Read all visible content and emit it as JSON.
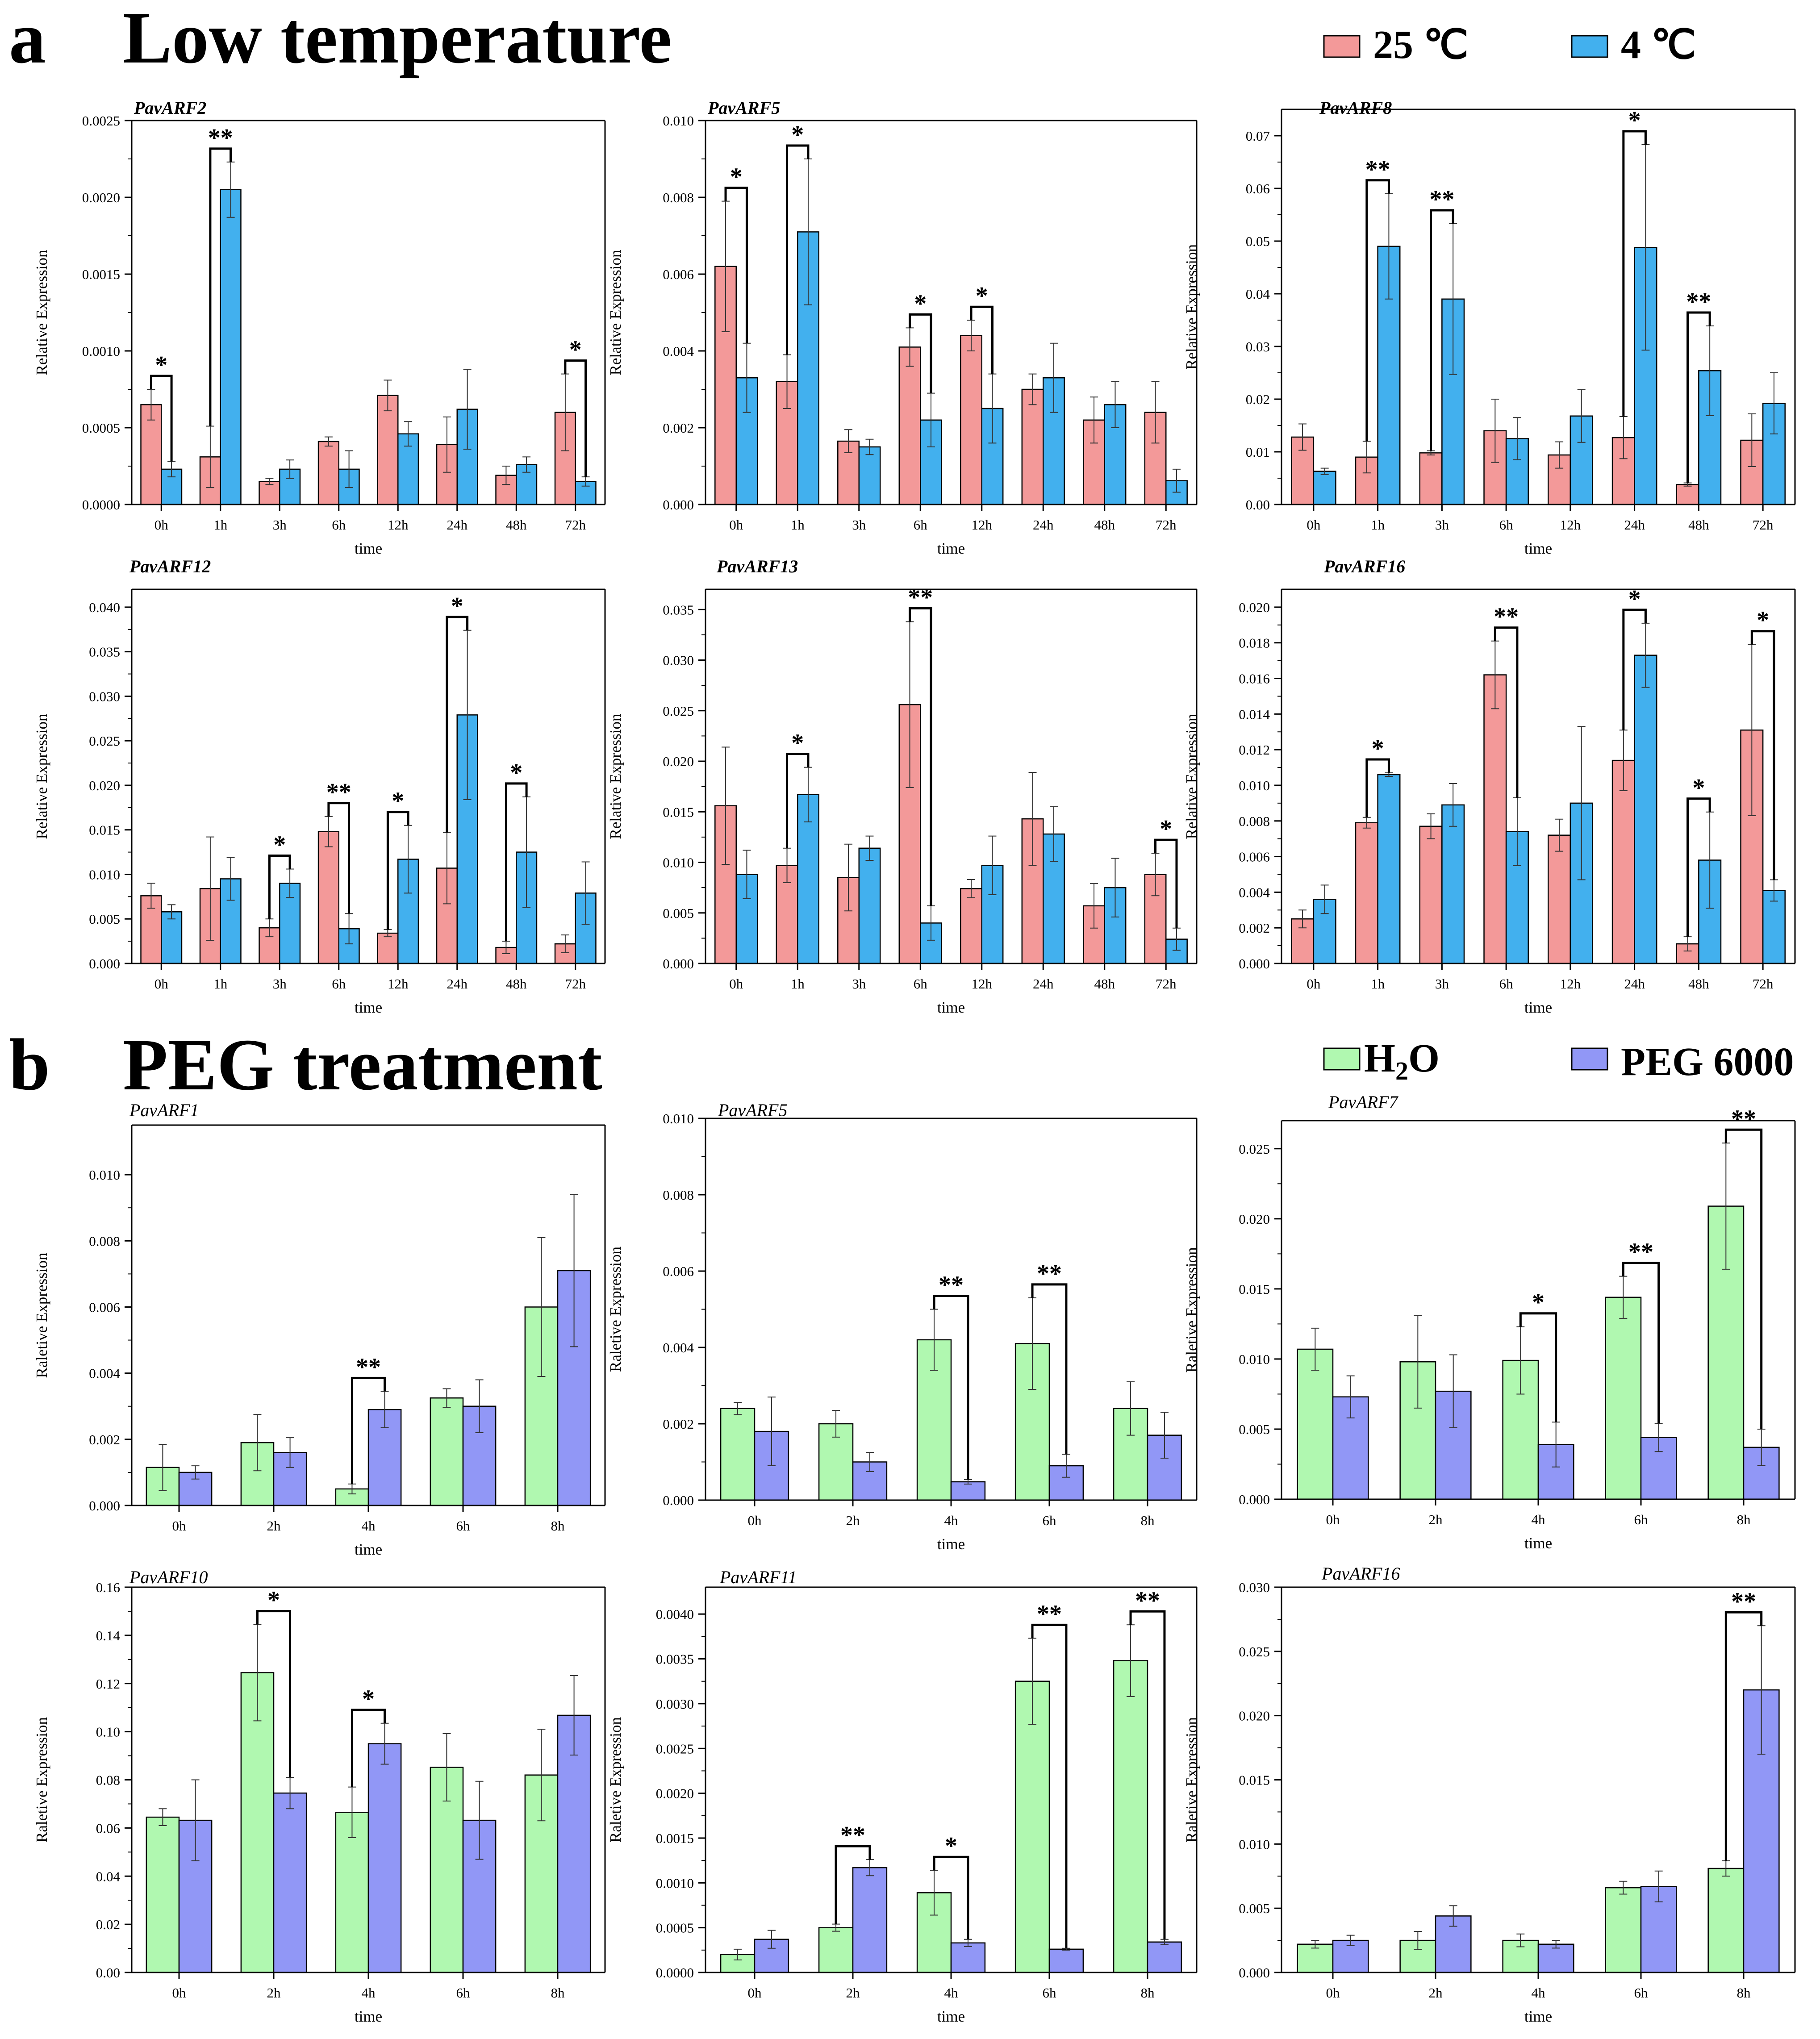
{
  "sections": [
    {
      "letter": "a",
      "title": "Low temperature",
      "legend": [
        {
          "label": "25 ℃",
          "color": "#F39999"
        },
        {
          "label": "4 ℃",
          "color": "#42B0EE"
        }
      ]
    },
    {
      "letter": "b",
      "title": "PEG treatment",
      "legend": [
        {
          "label": "H",
          "sub": "2",
          "label_after": "O",
          "color": "#B0F8B0"
        },
        {
          "label": "PEG 6000",
          "color": "#9197F6"
        }
      ]
    }
  ],
  "chart_data": [
    {
      "type": "bar",
      "title": "PavARF2",
      "xlabel": "time",
      "ylabel": "Relative Expression",
      "categories": [
        "0h",
        "1h",
        "3h",
        "6h",
        "12h",
        "24h",
        "48h",
        "72h"
      ],
      "ylim": [
        0,
        0.0025
      ],
      "yticks": [
        "0.0000",
        "0.0005",
        "0.0010",
        "0.0015",
        "0.0020",
        "0.0025"
      ],
      "series": [
        {
          "name": "25 ℃",
          "values": [
            0.00065,
            0.00031,
            0.00015,
            0.00041,
            0.00071,
            0.00039,
            0.00019,
            0.0006
          ],
          "errors": [
            0.0001,
            0.0002,
            2e-05,
            3e-05,
            0.0001,
            0.00018,
            6e-05,
            0.00025
          ]
        },
        {
          "name": "4 ℃",
          "values": [
            0.00023,
            0.00205,
            0.00023,
            0.00023,
            0.00046,
            0.00062,
            0.00026,
            0.00015
          ],
          "errors": [
            5e-05,
            0.00018,
            6e-05,
            0.00012,
            8e-05,
            0.00026,
            5e-05,
            3e-05
          ]
        }
      ],
      "significance": [
        {
          "index": 0,
          "label": "*"
        },
        {
          "index": 1,
          "label": "**"
        },
        {
          "index": 7,
          "label": "*"
        }
      ]
    },
    {
      "type": "bar",
      "title": "PavARF5",
      "xlabel": "time",
      "ylabel": "Relative Expression",
      "categories": [
        "0h",
        "1h",
        "3h",
        "6h",
        "12h",
        "24h",
        "48h",
        "72h"
      ],
      "ylim": [
        0,
        0.01
      ],
      "yticks": [
        "0.000",
        "0.002",
        "0.004",
        "0.006",
        "0.008",
        "0.010"
      ],
      "series": [
        {
          "name": "25 ℃",
          "values": [
            0.0062,
            0.0032,
            0.00165,
            0.0041,
            0.0044,
            0.003,
            0.0022,
            0.0024
          ],
          "errors": [
            0.0017,
            0.0007,
            0.0003,
            0.0005,
            0.0004,
            0.0004,
            0.0006,
            0.0008
          ]
        },
        {
          "name": "4 ℃",
          "values": [
            0.0033,
            0.0071,
            0.0015,
            0.0022,
            0.0025,
            0.0033,
            0.0026,
            0.00062
          ],
          "errors": [
            0.0009,
            0.0019,
            0.0002,
            0.0007,
            0.0009,
            0.0009,
            0.0006,
            0.0003
          ]
        }
      ],
      "significance": [
        {
          "index": 0,
          "label": "*"
        },
        {
          "index": 1,
          "label": "*"
        },
        {
          "index": 3,
          "label": "*"
        },
        {
          "index": 4,
          "label": "*"
        }
      ]
    },
    {
      "type": "bar",
      "title": "PavARF8",
      "xlabel": "time",
      "ylabel": "Relative Expression",
      "categories": [
        "0h",
        "1h",
        "3h",
        "6h",
        "12h",
        "24h",
        "48h",
        "72h"
      ],
      "ylim": [
        0,
        0.075
      ],
      "yticks": [
        "0.00",
        "0.01",
        "0.02",
        "0.03",
        "0.04",
        "0.05",
        "0.06",
        "0.07"
      ],
      "series": [
        {
          "name": "25 ℃",
          "values": [
            0.0128,
            0.009,
            0.0098,
            0.014,
            0.0094,
            0.0127,
            0.0038,
            0.0122
          ],
          "errors": [
            0.0025,
            0.003,
            0.0004,
            0.006,
            0.0025,
            0.004,
            0.0003,
            0.005
          ]
        },
        {
          "name": "4 ℃",
          "values": [
            0.0063,
            0.049,
            0.039,
            0.0125,
            0.0168,
            0.0488,
            0.0254,
            0.0192
          ],
          "errors": [
            0.0006,
            0.01,
            0.0143,
            0.004,
            0.005,
            0.0195,
            0.0085,
            0.0058
          ]
        }
      ],
      "significance": [
        {
          "index": 1,
          "label": "**"
        },
        {
          "index": 2,
          "label": "**"
        },
        {
          "index": 5,
          "label": "*"
        },
        {
          "index": 6,
          "label": "**"
        }
      ]
    },
    {
      "type": "bar",
      "title": "PavARF12",
      "xlabel": "time",
      "ylabel": "Relative Expression",
      "categories": [
        "0h",
        "1h",
        "3h",
        "6h",
        "12h",
        "24h",
        "48h",
        "72h"
      ],
      "ylim": [
        0,
        0.042
      ],
      "yticks": [
        "0.000",
        "0.005",
        "0.010",
        "0.015",
        "0.020",
        "0.025",
        "0.030",
        "0.035",
        "0.040"
      ],
      "series": [
        {
          "name": "25 ℃",
          "values": [
            0.0076,
            0.0084,
            0.004,
            0.0148,
            0.0034,
            0.0107,
            0.0018,
            0.0022
          ],
          "errors": [
            0.0014,
            0.0058,
            0.001,
            0.0017,
            0.0004,
            0.004,
            0.0007,
            0.001
          ]
        },
        {
          "name": "4 ℃",
          "values": [
            0.0058,
            0.0095,
            0.009,
            0.0039,
            0.0117,
            0.0279,
            0.0125,
            0.0079
          ],
          "errors": [
            0.0008,
            0.0024,
            0.0016,
            0.0017,
            0.0038,
            0.0095,
            0.0062,
            0.0035
          ]
        }
      ],
      "significance": [
        {
          "index": 2,
          "label": "*"
        },
        {
          "index": 3,
          "label": "**"
        },
        {
          "index": 4,
          "label": "*"
        },
        {
          "index": 5,
          "label": "*"
        },
        {
          "index": 6,
          "label": "*"
        }
      ]
    },
    {
      "type": "bar",
      "title": "PavARF13",
      "xlabel": "time",
      "ylabel": "Relative Expression",
      "categories": [
        "0h",
        "1h",
        "3h",
        "6h",
        "12h",
        "24h",
        "48h",
        "72h"
      ],
      "ylim": [
        0,
        0.037
      ],
      "yticks": [
        "0.000",
        "0.005",
        "0.010",
        "0.015",
        "0.020",
        "0.025",
        "0.030",
        "0.035"
      ],
      "series": [
        {
          "name": "25 ℃",
          "values": [
            0.0156,
            0.0097,
            0.0085,
            0.0256,
            0.0074,
            0.0143,
            0.0057,
            0.0088
          ],
          "errors": [
            0.0058,
            0.0017,
            0.0033,
            0.0082,
            0.0009,
            0.0046,
            0.0022,
            0.0021
          ]
        },
        {
          "name": "4 ℃",
          "values": [
            0.0088,
            0.0167,
            0.0114,
            0.004,
            0.0097,
            0.0128,
            0.0075,
            0.0024
          ],
          "errors": [
            0.0024,
            0.0027,
            0.0012,
            0.0017,
            0.0029,
            0.0027,
            0.0029,
            0.0011
          ]
        }
      ],
      "significance": [
        {
          "index": 1,
          "label": "*"
        },
        {
          "index": 3,
          "label": "**"
        },
        {
          "index": 7,
          "label": "*"
        }
      ]
    },
    {
      "type": "bar",
      "title": "PavARF16",
      "xlabel": "time",
      "ylabel": "Relative Expression",
      "categories": [
        "0h",
        "1h",
        "3h",
        "6h",
        "12h",
        "24h",
        "48h",
        "72h"
      ],
      "ylim": [
        0,
        0.021
      ],
      "yticks": [
        "0.000",
        "0.002",
        "0.004",
        "0.006",
        "0.008",
        "0.010",
        "0.012",
        "0.014",
        "0.016",
        "0.018",
        "0.020"
      ],
      "series": [
        {
          "name": "25 ℃",
          "values": [
            0.0025,
            0.0079,
            0.0077,
            0.0162,
            0.0072,
            0.0114,
            0.0011,
            0.0131
          ],
          "errors": [
            0.0005,
            0.0003,
            0.0007,
            0.0019,
            0.0009,
            0.0017,
            0.0004,
            0.0048
          ]
        },
        {
          "name": "4 ℃",
          "values": [
            0.0036,
            0.0106,
            0.0089,
            0.0074,
            0.009,
            0.0173,
            0.0058,
            0.0041
          ],
          "errors": [
            0.0008,
            0.0001,
            0.0012,
            0.0019,
            0.0043,
            0.0018,
            0.0027,
            0.0006
          ]
        }
      ],
      "significance": [
        {
          "index": 1,
          "label": "*"
        },
        {
          "index": 3,
          "label": "**"
        },
        {
          "index": 5,
          "label": "*"
        },
        {
          "index": 6,
          "label": "*"
        },
        {
          "index": 7,
          "label": "*"
        }
      ]
    },
    {
      "type": "bar",
      "title": "PavARF1",
      "xlabel": "time",
      "ylabel": "Raletive Expression",
      "categories": [
        "0h",
        "2h",
        "4h",
        "6h",
        "8h"
      ],
      "ylim": [
        0,
        0.0115
      ],
      "yticks": [
        "0.000",
        "0.002",
        "0.004",
        "0.006",
        "0.008",
        "0.010"
      ],
      "series": [
        {
          "name": "H2O",
          "values": [
            0.00115,
            0.0019,
            0.0005,
            0.00325,
            0.006
          ],
          "errors": [
            0.0007,
            0.00085,
            0.00015,
            0.00028,
            0.0021
          ]
        },
        {
          "name": "PEG 6000",
          "values": [
            0.001,
            0.0016,
            0.0029,
            0.003,
            0.0071
          ],
          "errors": [
            0.0002,
            0.00045,
            0.00055,
            0.0008,
            0.0023
          ]
        }
      ],
      "significance": [
        {
          "index": 2,
          "label": "**"
        }
      ]
    },
    {
      "type": "bar",
      "title": "PavARF5",
      "xlabel": "time",
      "ylabel": "Raletive Expression",
      "categories": [
        "0h",
        "2h",
        "4h",
        "6h",
        "8h"
      ],
      "ylim": [
        0,
        0.01
      ],
      "yticks": [
        "0.000",
        "0.002",
        "0.004",
        "0.006",
        "0.008",
        "0.010"
      ],
      "series": [
        {
          "name": "H2O",
          "values": [
            0.0024,
            0.002,
            0.0042,
            0.0041,
            0.0024
          ],
          "errors": [
            0.00016,
            0.00035,
            0.0008,
            0.0012,
            0.0007
          ]
        },
        {
          "name": "PEG 6000",
          "values": [
            0.0018,
            0.001,
            0.00048,
            0.0009,
            0.0017
          ],
          "errors": [
            0.0009,
            0.00025,
            6e-05,
            0.0003,
            0.0006
          ]
        }
      ],
      "significance": [
        {
          "index": 2,
          "label": "**"
        },
        {
          "index": 3,
          "label": "**"
        }
      ]
    },
    {
      "type": "bar",
      "title": "PavARF7",
      "xlabel": "time",
      "ylabel": "Raletive Expression",
      "categories": [
        "0h",
        "2h",
        "4h",
        "6h",
        "8h"
      ],
      "ylim": [
        0,
        0.027
      ],
      "yticks": [
        "0.000",
        "0.005",
        "0.010",
        "0.015",
        "0.020",
        "0.025"
      ],
      "series": [
        {
          "name": "H2O",
          "values": [
            0.0107,
            0.0098,
            0.0099,
            0.0144,
            0.0209
          ],
          "errors": [
            0.0015,
            0.0033,
            0.0024,
            0.0015,
            0.0045
          ]
        },
        {
          "name": "PEG 6000",
          "values": [
            0.0073,
            0.0077,
            0.0039,
            0.0044,
            0.0037
          ],
          "errors": [
            0.0015,
            0.0026,
            0.0016,
            0.001,
            0.0013
          ]
        }
      ],
      "significance": [
        {
          "index": 2,
          "label": "*"
        },
        {
          "index": 3,
          "label": "**"
        },
        {
          "index": 4,
          "label": "**"
        }
      ]
    },
    {
      "type": "bar",
      "title": "PavARF10",
      "xlabel": "time",
      "ylabel": "Raletive Expression",
      "categories": [
        "0h",
        "2h",
        "4h",
        "6h",
        "8h"
      ],
      "ylim": [
        0,
        0.16
      ],
      "yticks": [
        "0.00",
        "0.02",
        "0.04",
        "0.06",
        "0.08",
        "0.10",
        "0.12",
        "0.14",
        "0.16"
      ],
      "series": [
        {
          "name": "H2O",
          "values": [
            0.0645,
            0.1245,
            0.0665,
            0.0852,
            0.082
          ],
          "errors": [
            0.0035,
            0.02,
            0.0105,
            0.014,
            0.019
          ]
        },
        {
          "name": "PEG 6000",
          "values": [
            0.0632,
            0.0745,
            0.095,
            0.0632,
            0.1068
          ],
          "errors": [
            0.0168,
            0.0065,
            0.0085,
            0.0162,
            0.0165
          ]
        }
      ],
      "significance": [
        {
          "index": 1,
          "label": "*"
        },
        {
          "index": 2,
          "label": "*"
        }
      ]
    },
    {
      "type": "bar",
      "title": "PavARF11",
      "xlabel": "time",
      "ylabel": "Raletive Expression",
      "categories": [
        "0h",
        "2h",
        "4h",
        "6h",
        "8h"
      ],
      "ylim": [
        0,
        0.0043
      ],
      "yticks": [
        "0.0000",
        "0.0005",
        "0.0010",
        "0.0015",
        "0.0020",
        "0.0025",
        "0.0030",
        "0.0035",
        "0.0040"
      ],
      "series": [
        {
          "name": "H2O",
          "values": [
            0.0002,
            0.0005,
            0.00089,
            0.00325,
            0.00348
          ],
          "errors": [
            6e-05,
            4e-05,
            0.00025,
            0.00048,
            0.0004
          ]
        },
        {
          "name": "PEG 6000",
          "values": [
            0.00037,
            0.00117,
            0.00033,
            0.00026,
            0.00034
          ],
          "errors": [
            0.0001,
            9e-05,
            4e-05,
            1e-05,
            3e-05
          ]
        }
      ],
      "significance": [
        {
          "index": 1,
          "label": "**"
        },
        {
          "index": 2,
          "label": "*"
        },
        {
          "index": 3,
          "label": "**"
        },
        {
          "index": 4,
          "label": "**"
        }
      ]
    },
    {
      "type": "bar",
      "title": "PavARF16",
      "xlabel": "time",
      "ylabel": "Raletive Expression",
      "categories": [
        "0h",
        "2h",
        "4h",
        "6h",
        "8h"
      ],
      "ylim": [
        0,
        0.03
      ],
      "yticks": [
        "0.000",
        "0.005",
        "0.010",
        "0.015",
        "0.020",
        "0.025",
        "0.030"
      ],
      "series": [
        {
          "name": "H2O",
          "values": [
            0.0022,
            0.0025,
            0.0025,
            0.0066,
            0.0081
          ],
          "errors": [
            0.0003,
            0.0007,
            0.0005,
            0.0005,
            0.0006
          ]
        },
        {
          "name": "PEG 6000",
          "values": [
            0.0025,
            0.0044,
            0.0022,
            0.0067,
            0.022
          ],
          "errors": [
            0.0004,
            0.0008,
            0.0003,
            0.0012,
            0.005
          ]
        }
      ],
      "significance": [
        {
          "index": 4,
          "label": "**"
        }
      ]
    }
  ]
}
